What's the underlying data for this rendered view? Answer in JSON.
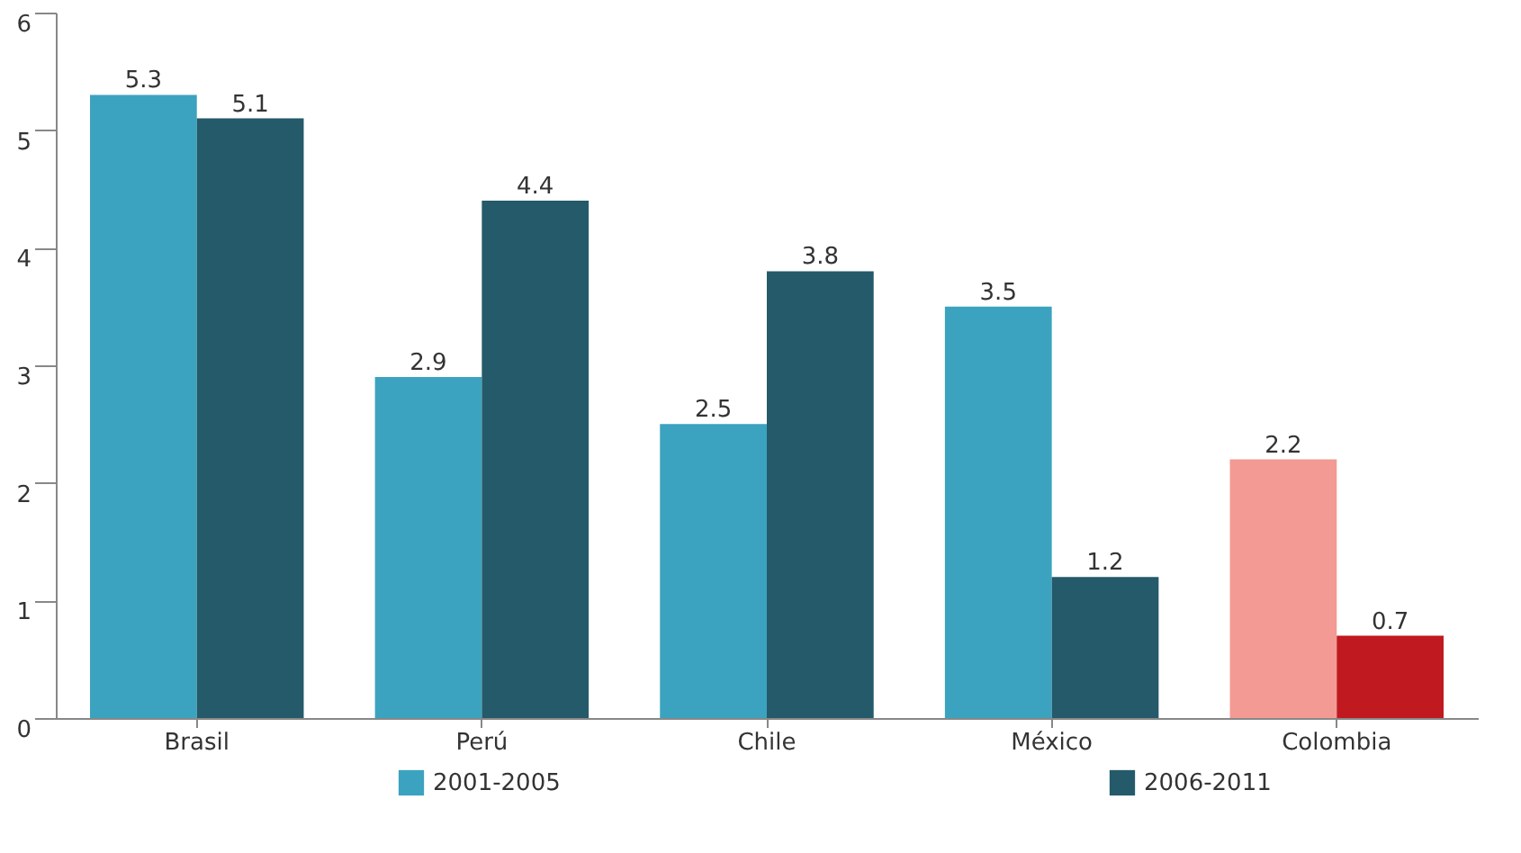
{
  "chart_data": {
    "type": "bar",
    "categories": [
      "Brasil",
      "Perú",
      "Chile",
      "México",
      "Colombia"
    ],
    "series": [
      {
        "name": "2001-2005",
        "color": "#3ba3bf",
        "colors": [
          "#3ba3bf",
          "#3ba3bf",
          "#3ba3bf",
          "#3ba3bf",
          "#f29a93"
        ],
        "values": [
          5.3,
          2.9,
          2.5,
          3.5,
          2.2
        ]
      },
      {
        "name": "2006-2011",
        "color": "#245a6a",
        "colors": [
          "#245a6a",
          "#245a6a",
          "#245a6a",
          "#245a6a",
          "#c0191f"
        ],
        "values": [
          5.1,
          4.4,
          3.8,
          1.2,
          0.7
        ]
      }
    ],
    "ylim": [
      0,
      6
    ],
    "yticks": [
      0,
      1,
      2,
      3,
      4,
      5,
      6
    ],
    "grid": false,
    "legend": "bottom",
    "data_labels": true
  }
}
